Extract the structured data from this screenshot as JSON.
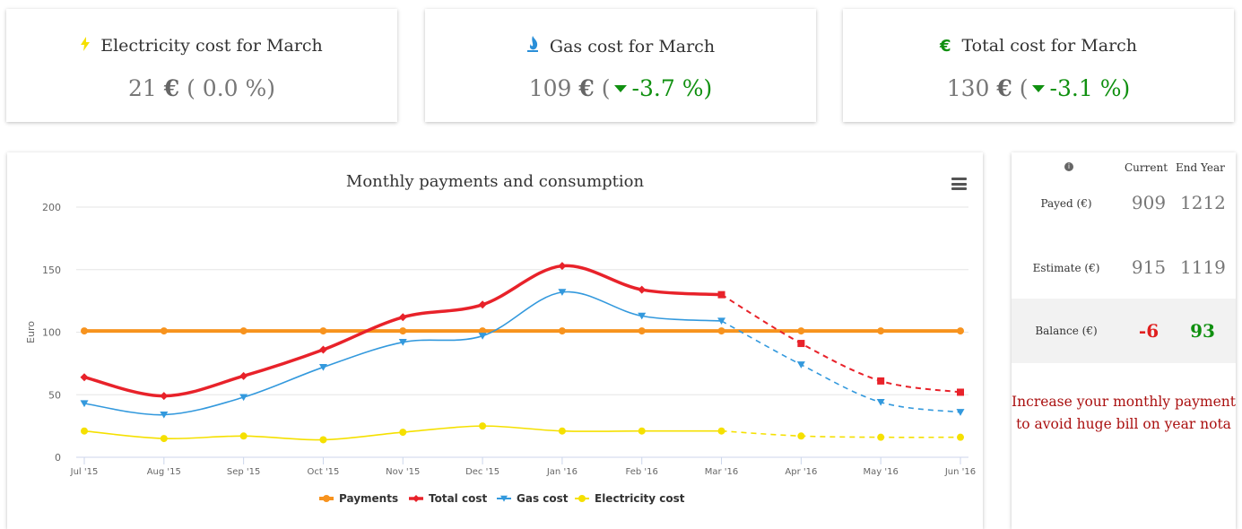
{
  "kpis": [
    {
      "title": "Electricity cost for March",
      "icon": "lightning-bolt-icon",
      "icon_color": "#f5e000",
      "value": "21",
      "currency": "€",
      "open": "(",
      "change": "0.0 %",
      "close": ")",
      "trend": "none"
    },
    {
      "title": "Gas cost for March",
      "icon": "gas-flame-icon",
      "icon_color": "#2a8fd8",
      "value": "109",
      "currency": "€",
      "open": "(",
      "change": "-3.7 %",
      "close": ")",
      "trend": "down"
    },
    {
      "title": "Total cost for March",
      "icon": "euro-icon",
      "icon_color": "#109010",
      "icon_glyph": "€",
      "value": "130",
      "currency": "€",
      "open": "(",
      "change": "-3.1 %",
      "close": ")",
      "trend": "down"
    }
  ],
  "chart": {
    "menu_icon": "hamburger-menu-icon"
  },
  "chart_data": {
    "type": "line",
    "title": "Monthly payments and consumption",
    "ylabel": "Euro",
    "xlabel": "",
    "ylim": [
      0,
      200
    ],
    "yticks": [
      0,
      50,
      100,
      150,
      200
    ],
    "categories": [
      "Jul '15",
      "Aug '15",
      "Sep '15",
      "Oct '15",
      "Nov '15",
      "Dec '15",
      "Jan '16",
      "Feb '16",
      "Mar '16",
      "Apr '16",
      "May '16",
      "Jun '16"
    ],
    "forecast_from_index": 8,
    "series": [
      {
        "name": "Payments",
        "color": "#f7931e",
        "marker": "circle",
        "width": 4,
        "values": [
          101,
          101,
          101,
          101,
          101,
          101,
          101,
          101,
          101,
          101,
          101,
          101
        ]
      },
      {
        "name": "Total cost",
        "color": "#e8222a",
        "marker": "diamond",
        "width": 3.5,
        "forecast_marker": "square",
        "values": [
          64,
          49,
          65,
          86,
          112,
          122,
          153,
          134,
          130,
          91,
          61,
          52
        ]
      },
      {
        "name": "Gas cost",
        "color": "#3399dd",
        "marker": "triangle-down",
        "width": 1.6,
        "values": [
          43,
          34,
          48,
          72,
          92,
          97,
          132,
          113,
          109,
          74,
          44,
          36
        ]
      },
      {
        "name": "Electricity cost",
        "color": "#f5e000",
        "marker": "circle",
        "width": 1.6,
        "values": [
          21,
          15,
          17,
          14,
          20,
          25,
          21,
          21,
          21,
          17,
          16,
          16
        ]
      }
    ],
    "grid": true,
    "legend_position": "bottom"
  },
  "side": {
    "info_icon": "info-icon",
    "headers": {
      "current": "Current",
      "end_year": "End Year"
    },
    "rows": [
      {
        "label": "Payed (€)",
        "current": "909",
        "end": "1212"
      },
      {
        "label": "Estimate (€)",
        "current": "915",
        "end": "1119"
      },
      {
        "label": "Balance (€)",
        "current": "-6",
        "end": "93"
      }
    ],
    "warning": "Increase your monthly payment to avoid huge bill on year nota"
  }
}
